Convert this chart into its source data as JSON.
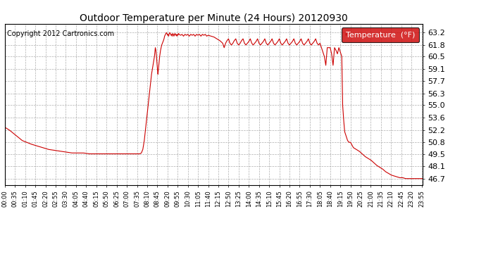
{
  "title": "Outdoor Temperature per Minute (24 Hours) 20120930",
  "copyright_text": "Copyright 2012 Cartronics.com",
  "legend_label": "Temperature  (°F)",
  "legend_bg": "#cc0000",
  "legend_text_color": "#ffffff",
  "line_color": "#cc0000",
  "background_color": "#ffffff",
  "grid_color": "#999999",
  "yticks": [
    46.7,
    48.1,
    49.5,
    50.8,
    52.2,
    53.6,
    55.0,
    56.3,
    57.7,
    59.1,
    60.5,
    61.8,
    63.2
  ],
  "ymin": 46.0,
  "ymax": 64.2,
  "total_minutes": 1440,
  "key_points": [
    [
      0,
      52.5
    ],
    [
      15,
      52.2
    ],
    [
      30,
      51.8
    ],
    [
      45,
      51.4
    ],
    [
      60,
      51.0
    ],
    [
      75,
      50.8
    ],
    [
      90,
      50.6
    ],
    [
      110,
      50.4
    ],
    [
      130,
      50.2
    ],
    [
      150,
      50.0
    ],
    [
      170,
      49.9
    ],
    [
      190,
      49.8
    ],
    [
      210,
      49.7
    ],
    [
      230,
      49.6
    ],
    [
      250,
      49.6
    ],
    [
      270,
      49.6
    ],
    [
      290,
      49.5
    ],
    [
      310,
      49.5
    ],
    [
      330,
      49.5
    ],
    [
      350,
      49.5
    ],
    [
      370,
      49.5
    ],
    [
      390,
      49.5
    ],
    [
      410,
      49.5
    ],
    [
      430,
      49.5
    ],
    [
      450,
      49.5
    ],
    [
      460,
      49.5
    ],
    [
      465,
      49.5
    ],
    [
      470,
      49.6
    ],
    [
      475,
      50.0
    ],
    [
      480,
      51.0
    ],
    [
      485,
      52.5
    ],
    [
      490,
      54.0
    ],
    [
      495,
      55.5
    ],
    [
      500,
      57.0
    ],
    [
      505,
      58.5
    ],
    [
      510,
      59.5
    ],
    [
      515,
      60.5
    ],
    [
      518,
      61.5
    ],
    [
      520,
      61.2
    ],
    [
      522,
      60.5
    ],
    [
      525,
      59.2
    ],
    [
      527,
      58.5
    ],
    [
      530,
      59.5
    ],
    [
      533,
      60.5
    ],
    [
      536,
      61.2
    ],
    [
      540,
      61.8
    ],
    [
      545,
      62.2
    ],
    [
      548,
      62.5
    ],
    [
      550,
      62.8
    ],
    [
      553,
      63.0
    ],
    [
      556,
      63.2
    ],
    [
      558,
      63.1
    ],
    [
      560,
      62.9
    ],
    [
      562,
      63.0
    ],
    [
      564,
      62.8
    ],
    [
      566,
      63.1
    ],
    [
      568,
      63.2
    ],
    [
      570,
      63.1
    ],
    [
      572,
      62.9
    ],
    [
      574,
      63.0
    ],
    [
      576,
      62.8
    ],
    [
      578,
      63.1
    ],
    [
      580,
      63.0
    ],
    [
      582,
      62.8
    ],
    [
      584,
      63.0
    ],
    [
      586,
      63.1
    ],
    [
      588,
      62.9
    ],
    [
      590,
      63.0
    ],
    [
      592,
      62.8
    ],
    [
      594,
      63.0
    ],
    [
      596,
      62.9
    ],
    [
      598,
      63.1
    ],
    [
      600,
      63.0
    ],
    [
      605,
      62.9
    ],
    [
      610,
      63.0
    ],
    [
      615,
      62.8
    ],
    [
      620,
      63.0
    ],
    [
      625,
      62.9
    ],
    [
      630,
      63.0
    ],
    [
      635,
      62.8
    ],
    [
      640,
      63.0
    ],
    [
      645,
      62.9
    ],
    [
      650,
      63.0
    ],
    [
      655,
      62.8
    ],
    [
      660,
      63.0
    ],
    [
      665,
      62.9
    ],
    [
      670,
      63.0
    ],
    [
      675,
      62.8
    ],
    [
      680,
      63.0
    ],
    [
      685,
      62.9
    ],
    [
      690,
      63.0
    ],
    [
      695,
      62.8
    ],
    [
      700,
      62.9
    ],
    [
      710,
      62.8
    ],
    [
      720,
      62.7
    ],
    [
      730,
      62.5
    ],
    [
      740,
      62.3
    ],
    [
      750,
      62.0
    ],
    [
      755,
      61.5
    ],
    [
      760,
      62.0
    ],
    [
      765,
      62.3
    ],
    [
      770,
      62.5
    ],
    [
      775,
      62.0
    ],
    [
      780,
      61.8
    ],
    [
      785,
      62.0
    ],
    [
      790,
      62.3
    ],
    [
      795,
      62.5
    ],
    [
      800,
      62.0
    ],
    [
      805,
      61.8
    ],
    [
      810,
      62.0
    ],
    [
      815,
      62.3
    ],
    [
      820,
      62.5
    ],
    [
      825,
      62.0
    ],
    [
      830,
      61.8
    ],
    [
      835,
      62.0
    ],
    [
      840,
      62.2
    ],
    [
      845,
      62.5
    ],
    [
      850,
      62.0
    ],
    [
      855,
      61.8
    ],
    [
      860,
      62.0
    ],
    [
      865,
      62.2
    ],
    [
      870,
      62.5
    ],
    [
      875,
      62.0
    ],
    [
      880,
      61.8
    ],
    [
      885,
      62.0
    ],
    [
      890,
      62.2
    ],
    [
      895,
      62.5
    ],
    [
      900,
      62.0
    ],
    [
      905,
      61.8
    ],
    [
      910,
      62.0
    ],
    [
      915,
      62.2
    ],
    [
      920,
      62.5
    ],
    [
      925,
      62.0
    ],
    [
      930,
      61.8
    ],
    [
      935,
      62.0
    ],
    [
      940,
      62.2
    ],
    [
      945,
      62.5
    ],
    [
      950,
      62.0
    ],
    [
      955,
      61.8
    ],
    [
      960,
      62.0
    ],
    [
      965,
      62.2
    ],
    [
      970,
      62.5
    ],
    [
      975,
      62.0
    ],
    [
      980,
      61.8
    ],
    [
      985,
      62.0
    ],
    [
      990,
      62.2
    ],
    [
      995,
      62.5
    ],
    [
      1000,
      62.0
    ],
    [
      1005,
      61.8
    ],
    [
      1010,
      62.0
    ],
    [
      1015,
      62.2
    ],
    [
      1020,
      62.5
    ],
    [
      1025,
      62.0
    ],
    [
      1030,
      61.8
    ],
    [
      1035,
      62.0
    ],
    [
      1040,
      62.2
    ],
    [
      1045,
      62.5
    ],
    [
      1050,
      62.0
    ],
    [
      1055,
      61.8
    ],
    [
      1060,
      62.0
    ],
    [
      1065,
      62.2
    ],
    [
      1070,
      62.5
    ],
    [
      1075,
      62.0
    ],
    [
      1080,
      61.8
    ],
    [
      1085,
      62.0
    ],
    [
      1090,
      61.5
    ],
    [
      1095,
      61.0
    ],
    [
      1100,
      60.5
    ],
    [
      1105,
      59.5
    ],
    [
      1110,
      61.5
    ],
    [
      1115,
      61.5
    ],
    [
      1120,
      61.5
    ],
    [
      1125,
      60.8
    ],
    [
      1130,
      59.5
    ],
    [
      1135,
      61.5
    ],
    [
      1140,
      61.2
    ],
    [
      1145,
      60.8
    ],
    [
      1150,
      61.5
    ],
    [
      1155,
      61.0
    ],
    [
      1160,
      60.5
    ],
    [
      1163,
      55.0
    ],
    [
      1166,
      53.5
    ],
    [
      1170,
      52.0
    ],
    [
      1175,
      51.5
    ],
    [
      1180,
      51.0
    ],
    [
      1185,
      50.8
    ],
    [
      1190,
      50.8
    ],
    [
      1195,
      50.5
    ],
    [
      1200,
      50.2
    ],
    [
      1210,
      50.0
    ],
    [
      1220,
      49.8
    ],
    [
      1230,
      49.5
    ],
    [
      1240,
      49.2
    ],
    [
      1250,
      49.0
    ],
    [
      1260,
      48.8
    ],
    [
      1270,
      48.5
    ],
    [
      1280,
      48.2
    ],
    [
      1290,
      48.0
    ],
    [
      1300,
      47.8
    ],
    [
      1310,
      47.5
    ],
    [
      1320,
      47.3
    ],
    [
      1330,
      47.1
    ],
    [
      1340,
      47.0
    ],
    [
      1350,
      46.9
    ],
    [
      1360,
      46.8
    ],
    [
      1370,
      46.8
    ],
    [
      1380,
      46.7
    ],
    [
      1390,
      46.7
    ],
    [
      1400,
      46.7
    ],
    [
      1410,
      46.7
    ],
    [
      1420,
      46.7
    ],
    [
      1430,
      46.7
    ],
    [
      1439,
      46.7
    ]
  ],
  "xtick_minutes": [
    0,
    35,
    70,
    105,
    140,
    175,
    210,
    245,
    280,
    315,
    350,
    385,
    420,
    455,
    490,
    525,
    560,
    595,
    630,
    665,
    700,
    735,
    770,
    805,
    840,
    875,
    910,
    945,
    980,
    1015,
    1050,
    1085,
    1120,
    1155,
    1190,
    1225,
    1260,
    1295,
    1330,
    1365,
    1400,
    1435
  ],
  "xtick_labels": [
    "00:00",
    "00:35",
    "01:10",
    "01:45",
    "02:20",
    "02:55",
    "03:30",
    "04:05",
    "04:40",
    "05:15",
    "05:50",
    "06:25",
    "07:00",
    "07:35",
    "08:10",
    "08:45",
    "09:20",
    "09:55",
    "10:30",
    "11:05",
    "11:40",
    "12:15",
    "12:50",
    "13:25",
    "14:00",
    "14:35",
    "15:10",
    "15:45",
    "16:20",
    "16:55",
    "17:30",
    "18:05",
    "18:40",
    "19:15",
    "19:50",
    "20:25",
    "21:00",
    "21:35",
    "22:10",
    "22:45",
    "23:20",
    "23:55"
  ]
}
